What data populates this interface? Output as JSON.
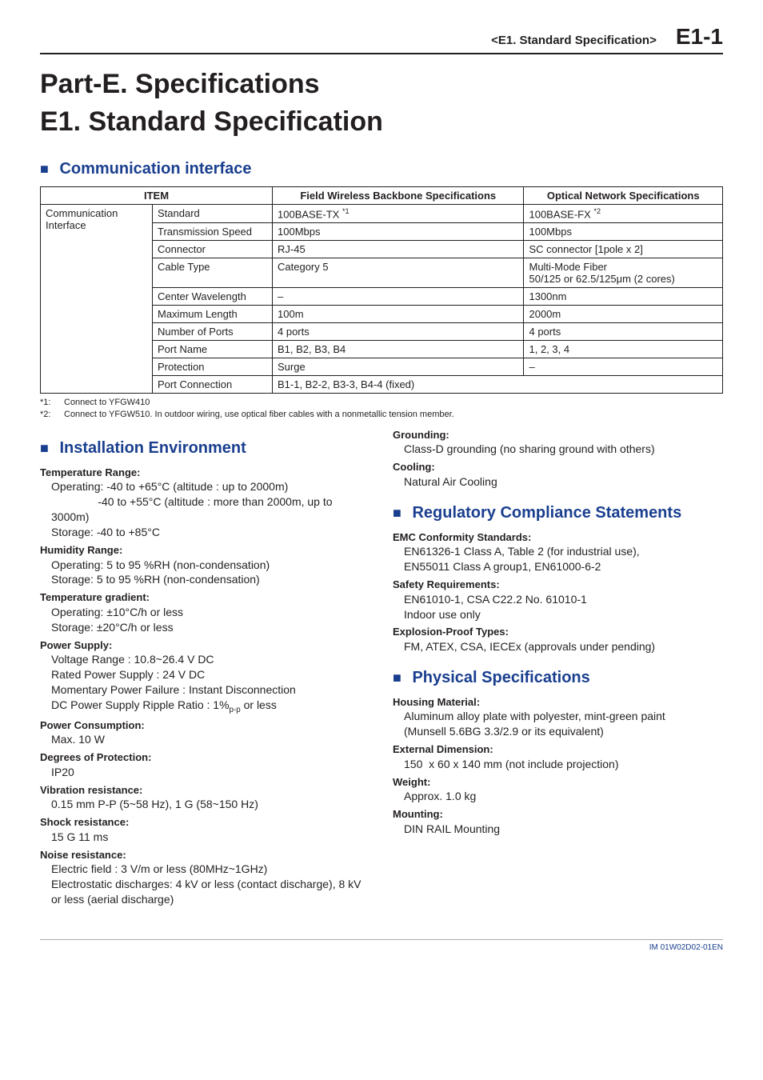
{
  "header": {
    "crumb": "<E1.  Standard Specification>",
    "page": "E1-1"
  },
  "titles": {
    "part": "Part-E.    Specifications",
    "section": "E1.    Standard Specification"
  },
  "comm_interface": {
    "heading": "Communication interface",
    "columns": [
      "ITEM",
      "Field Wireless Backbone Specifications",
      "Optical Network Specifications"
    ],
    "row_group": "Communication Interface",
    "rows": [
      {
        "label": "Standard",
        "fw": "100BASE-TX",
        "fw_sup": "*1",
        "opt": "100BASE-FX",
        "opt_sup": "*2"
      },
      {
        "label": "Transmission Speed",
        "fw": "100Mbps",
        "opt": "100Mbps"
      },
      {
        "label": "Connector",
        "fw": "RJ-45",
        "opt": "SC connector [1pole x 2]"
      },
      {
        "label": "Cable Type",
        "fw": "Category 5",
        "opt": "Multi-Mode Fiber\n50/125 or 62.5/125μm (2 cores)"
      },
      {
        "label": "Center Wavelength",
        "fw": "–",
        "opt": "1300nm"
      },
      {
        "label": "Maximum Length",
        "fw": "100m",
        "opt": "2000m"
      },
      {
        "label": "Number of Ports",
        "fw": "4 ports",
        "opt": "4 ports"
      },
      {
        "label": "Port Name",
        "fw": "B1, B2, B3, B4",
        "opt": "1, 2, 3, 4"
      },
      {
        "label": "Protection",
        "fw": "Surge",
        "opt": "–"
      },
      {
        "label": "Port Connection",
        "fw": "B1-1, B2-2, B3-3, B4-4 (fixed)",
        "span": true
      }
    ],
    "footnotes": [
      {
        "key": "*1:",
        "text": "Connect to YFGW410"
      },
      {
        "key": "*2:",
        "text": "Connect to YFGW510. In outdoor wiring, use optical fiber cables with a nonmetallic tension member."
      }
    ]
  },
  "installation": {
    "heading": "Installation Environment",
    "items_left": [
      {
        "label": "Temperature Range:",
        "lines": [
          "Operating: -40 to +65°C (altitude : up to 2000m)",
          "               -40 to +55°C (altitude : more than 2000m, up to 3000m)",
          "Storage: -40 to +85°C"
        ]
      },
      {
        "label": "Humidity Range:",
        "lines": [
          "Operating: 5 to 95 %RH (non-condensation)",
          "Storage: 5 to 95 %RH (non-condensation)"
        ]
      },
      {
        "label": "Temperature gradient:",
        "lines": [
          "Operating: ±10°C/h or less",
          "Storage: ±20°C/h or less"
        ]
      },
      {
        "label": "Power Supply:",
        "lines": [
          "Voltage Range : 10.8~26.4 V DC",
          "Rated Power Supply : 24 V DC",
          "Momentary Power Failure : Instant Disconnection",
          "DC Power Supply Ripple Ratio : 1%p-p or less"
        ],
        "subscript_line": 3
      },
      {
        "label": "Power Consumption:",
        "lines": [
          "Max. 10 W"
        ]
      },
      {
        "label": "Degrees of Protection:",
        "lines": [
          "IP20"
        ]
      },
      {
        "label": "Vibration resistance:",
        "lines": [
          "0.15 mm P-P (5~58 Hz), 1 G (58~150 Hz)"
        ]
      },
      {
        "label": "Shock resistance:",
        "lines": [
          "15 G 11 ms"
        ]
      },
      {
        "label": "Noise resistance:",
        "lines": [
          "Electric field : 3 V/m or less (80MHz~1GHz)",
          "Electrostatic discharges: 4 kV or less (contact discharge), 8 kV or less (aerial discharge)"
        ]
      }
    ],
    "items_right_top": [
      {
        "label": "Grounding:",
        "lines": [
          "Class-D grounding (no sharing ground with others)"
        ]
      },
      {
        "label": "Cooling:",
        "lines": [
          "Natural Air Cooling"
        ]
      }
    ]
  },
  "regulatory": {
    "heading": "Regulatory Compliance Statements",
    "items": [
      {
        "label": "EMC Conformity Standards:",
        "lines": [
          "EN61326-1 Class A, Table 2 (for industrial use),",
          "EN55011 Class A group1, EN61000-6-2"
        ]
      },
      {
        "label": "Safety Requirements:",
        "lines": [
          "EN61010-1, CSA C22.2 No. 61010-1",
          "Indoor use only"
        ]
      },
      {
        "label": "Explosion-Proof Types:",
        "lines": [
          "FM, ATEX, CSA, IECEx (approvals under pending)"
        ]
      }
    ]
  },
  "physical": {
    "heading": "Physical Specifications",
    "items": [
      {
        "label": "Housing Material:",
        "lines": [
          "Aluminum alloy plate with polyester, mint-green paint",
          "(Munsell 5.6BG 3.3/2.9 or its equivalent)"
        ]
      },
      {
        "label": "External Dimension:",
        "lines": [
          "150  x 60 x 140 mm (not include projection)"
        ]
      },
      {
        "label": "Weight:",
        "lines": [
          "Approx. 1.0 kg"
        ]
      },
      {
        "label": "Mounting:",
        "lines": [
          "DIN RAIL Mounting"
        ]
      }
    ]
  },
  "doc_id": "IM 01W02D02-01EN",
  "colors": {
    "accent": "#1a3f8f",
    "text": "#231f20",
    "bg": "#ffffff"
  }
}
